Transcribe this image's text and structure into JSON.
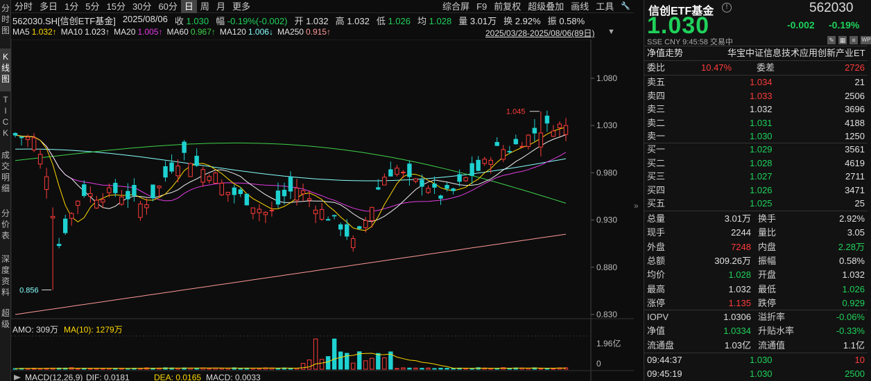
{
  "left_tabs": [
    {
      "label": "分\n时\n图",
      "active": false
    },
    {
      "label": "K\n线\n图",
      "active": true
    },
    {
      "label": "T\nI\nC\nK",
      "active": false
    },
    {
      "label": "成\n交\n明\n细",
      "active": false
    },
    {
      "label": "分\n价\n表",
      "active": false
    },
    {
      "label": "深\n度\n资\n料",
      "active": false
    },
    {
      "label": "超\n级",
      "active": false
    }
  ],
  "toolbar": {
    "periods": [
      "分时",
      "多日",
      "1分",
      "5分",
      "15分",
      "30分",
      "60分",
      "日",
      "周",
      "月",
      "更多"
    ],
    "active_period": "日",
    "right": [
      "综合屏",
      "F9",
      "前复权",
      "超级叠加",
      "画线",
      "工具"
    ],
    "wrench_icon": "wrench-icon"
  },
  "info": {
    "code": "562030.SH[信创ETF基金]",
    "date": "2025/08/06",
    "close_label": "收",
    "close": "1.030",
    "change_label": "幅",
    "change": "-0.19%(-0.002)",
    "open_label": "开",
    "open": "1.032",
    "high_label": "高",
    "high": "1.032",
    "low_label": "低",
    "low": "1.026",
    "avg_label": "均",
    "avg": "1.028",
    "vol_label": "量",
    "vol": "3.01万",
    "turnover_label": "换",
    "turnover": "2.92%",
    "amp_label": "振",
    "amp": "0.58%"
  },
  "ma_legend": [
    {
      "name": "MA5",
      "value": "1.032↑",
      "cls": "ma5"
    },
    {
      "name": "MA10",
      "value": "1.023↑",
      "cls": "ma10"
    },
    {
      "name": "MA20",
      "value": "1.005↑",
      "cls": "ma20"
    },
    {
      "name": "MA60",
      "value": "0.967↑",
      "cls": "ma60"
    },
    {
      "name": "MA120",
      "value": "1.006↓",
      "cls": "ma120"
    },
    {
      "name": "MA250",
      "value": "0.915↑",
      "cls": "ma250"
    }
  ],
  "date_range": "2025/03/28-2025/08/06(89日)",
  "chart_data": {
    "type": "candlestick",
    "y_ticks": [
      "1.080",
      "1.030",
      "0.980",
      "0.930",
      "0.880",
      "0.830"
    ],
    "ylim": [
      0.83,
      1.08
    ],
    "high_marker": "1.045",
    "low_marker": "0.856",
    "amo_label": "AMO: 309万",
    "amo_ma_label": "MA(10): 1279万",
    "amo_ticks": [
      "1.96亿",
      "0"
    ],
    "macd_label": "MACD(12,26,9)",
    "dif": "DIF: 0.0181",
    "dea": "DEA: 0.0165",
    "macd": "MACD: 0.0033",
    "colors": {
      "up": "#ff3b3b",
      "down": "#1fd1d1",
      "ma5": "#ffd800",
      "ma10": "#f0f0f0",
      "ma20": "#e23ce2",
      "ma60": "#3fd34b",
      "ma120": "#88ffff",
      "ma250": "#ff9999"
    }
  },
  "panel": {
    "name": "信创ETF基金",
    "code": "562030",
    "price": "1.030",
    "change": "-0.002",
    "change_pct": "-0.19%",
    "sub": "SSE  CNY  9:45:58  交易中",
    "nav_trend": "净值走势",
    "index_name": "华宝中证信息技术应用创新产业ET",
    "weibi_label": "委比",
    "weibi": "10.47%",
    "weicha_label": "委差",
    "weicha": "2726",
    "asks": [
      {
        "label": "卖五",
        "price": "1.034",
        "vol": "21",
        "cls": "up"
      },
      {
        "label": "卖四",
        "price": "1.033",
        "vol": "2506",
        "cls": "up"
      },
      {
        "label": "卖三",
        "price": "1.032",
        "vol": "3696",
        "cls": "wh"
      },
      {
        "label": "卖二",
        "price": "1.031",
        "vol": "4188",
        "cls": "dn"
      },
      {
        "label": "卖一",
        "price": "1.030",
        "vol": "1250",
        "cls": "dn"
      }
    ],
    "bids": [
      {
        "label": "买一",
        "price": "1.029",
        "vol": "3561",
        "cls": "dn"
      },
      {
        "label": "买二",
        "price": "1.028",
        "vol": "4619",
        "cls": "dn"
      },
      {
        "label": "买三",
        "price": "1.027",
        "vol": "2711",
        "cls": "dn"
      },
      {
        "label": "买四",
        "price": "1.026",
        "vol": "3471",
        "cls": "dn"
      },
      {
        "label": "买五",
        "price": "1.025",
        "vol": "25",
        "cls": "dn"
      }
    ],
    "stats": [
      {
        "l1": "总量",
        "v1": "3.01万",
        "c1": "wh",
        "l2": "换手",
        "v2": "2.92%",
        "c2": "wh"
      },
      {
        "l1": "现手",
        "v1": "2244",
        "c1": "wh",
        "l2": "量比",
        "v2": "3.05",
        "c2": "wh"
      },
      {
        "l1": "外盘",
        "v1": "7248",
        "c1": "up",
        "l2": "内盘",
        "v2": "2.28万",
        "c2": "dn"
      },
      {
        "l1": "总额",
        "v1": "309.26万",
        "c1": "wh",
        "l2": "振幅",
        "v2": "0.58%",
        "c2": "wh"
      },
      {
        "l1": "均价",
        "v1": "1.028",
        "c1": "dn",
        "l2": "开盘",
        "v2": "1.032",
        "c2": "wh"
      },
      {
        "l1": "最高",
        "v1": "1.032",
        "c1": "wh",
        "l2": "最低",
        "v2": "1.026",
        "c2": "dn"
      },
      {
        "l1": "涨停",
        "v1": "1.135",
        "c1": "up",
        "l2": "跌停",
        "v2": "0.929",
        "c2": "dn"
      }
    ],
    "iopv": [
      {
        "l1": "IOPV",
        "v1": "1.0306",
        "c1": "wh",
        "l2": "溢折率",
        "v2": "-0.06%",
        "c2": "dn"
      },
      {
        "l1": "净值",
        "v1": "1.0334",
        "c1": "dn",
        "l2": "升贴水率",
        "v2": "-0.33%",
        "c2": "dn"
      },
      {
        "l1": "流通盘",
        "v1": "1.03亿",
        "c1": "wh",
        "l2": "流通值",
        "v2": "1.1亿",
        "c2": "wh"
      }
    ],
    "ticks": [
      {
        "time": "09:44:37",
        "price": "1.030",
        "vol": "10",
        "cls": "up"
      },
      {
        "time": "09:45:19",
        "price": "1.030",
        "vol": "2500",
        "cls": "dn"
      }
    ]
  }
}
